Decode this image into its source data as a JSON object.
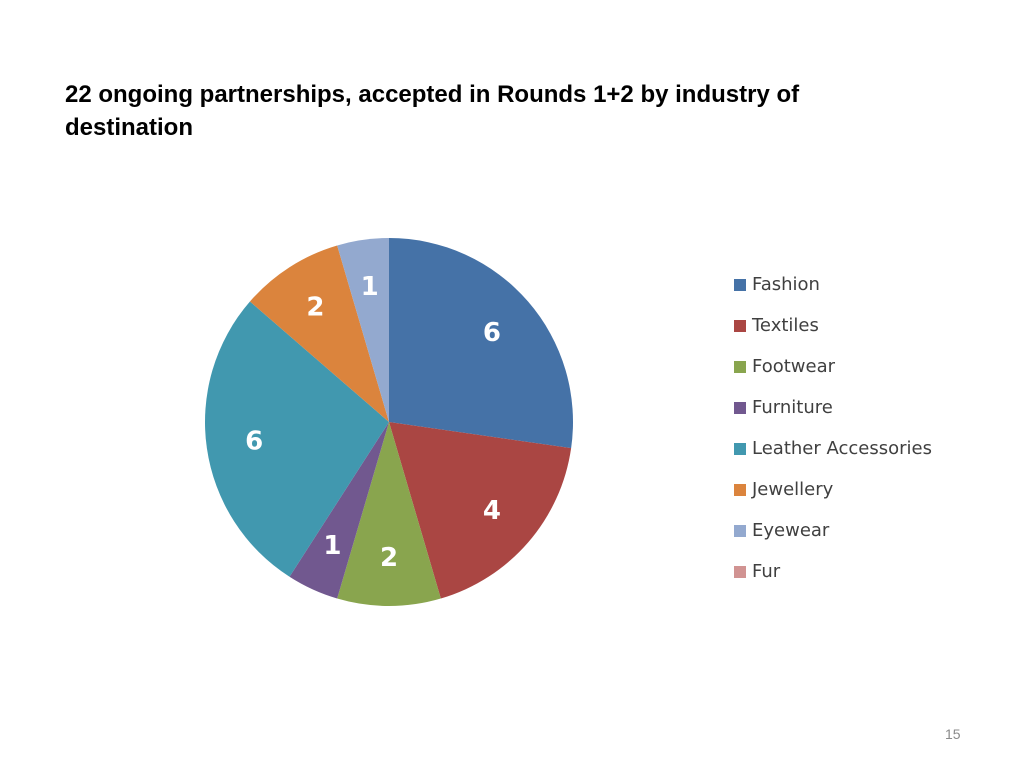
{
  "title": "22 ongoing partnerships, accepted in Rounds 1+2  by industry of destination",
  "page_number": "15",
  "chart_data": {
    "type": "pie",
    "categories": [
      "Fashion",
      "Textiles",
      "Footwear",
      "Furniture",
      "Leather Accessories",
      "Jewellery",
      "Eyewear",
      "Fur"
    ],
    "values": [
      6,
      4,
      2,
      1,
      6,
      2,
      1,
      0
    ],
    "data_labels": [
      "6",
      "4",
      "2",
      "1",
      "6",
      "2",
      "1",
      ""
    ],
    "colors": [
      "#4572A7",
      "#AA4643",
      "#89A54E",
      "#71588F",
      "#4198AF",
      "#DB843D",
      "#93A9CF",
      "#D19392"
    ],
    "legend_position": "right"
  }
}
